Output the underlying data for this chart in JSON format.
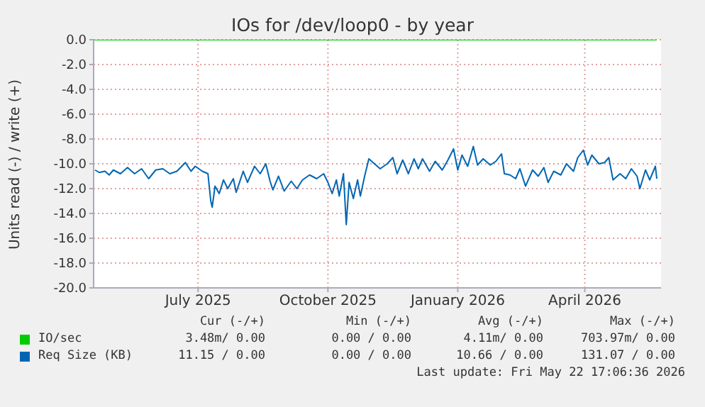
{
  "chart_data": {
    "type": "line",
    "title": "IOs for /dev/loop0 - by year",
    "ylabel": "Units read (-) / write (+)",
    "xlim": [
      "2025-04-18",
      "2026-05-25"
    ],
    "xticks": [
      {
        "value": "2025-07-01",
        "label": "July 2025"
      },
      {
        "value": "2025-10-01",
        "label": "October 2025"
      },
      {
        "value": "2026-01-01",
        "label": "January 2026"
      },
      {
        "value": "2026-04-01",
        "label": "April 2026"
      }
    ],
    "ylim": [
      -20,
      0
    ],
    "yticks": [
      {
        "value": -20,
        "label": "-20.0"
      },
      {
        "value": -18,
        "label": "-18.0"
      },
      {
        "value": -16,
        "label": "-16.0"
      },
      {
        "value": -14,
        "label": "-14.0"
      },
      {
        "value": -12,
        "label": "-12.0"
      },
      {
        "value": -10,
        "label": "-10.0"
      },
      {
        "value": -8,
        "label": "-8.0"
      },
      {
        "value": -6,
        "label": "-6.0"
      },
      {
        "value": -4,
        "label": "-4.0"
      },
      {
        "value": -2,
        "label": "-2.0"
      },
      {
        "value": 0,
        "label": "0.0"
      }
    ],
    "grid": true,
    "legend": "bottom",
    "marker": "none",
    "line_style": "solid",
    "series": [
      {
        "name": "IO/sec",
        "color": "#00cc00",
        "x": [
          "2025-04-18",
          "2026-05-22"
        ],
        "values": [
          0,
          0
        ]
      },
      {
        "name": "Req Size (KB)",
        "color": "#0066b3",
        "x": [
          "2025-04-19",
          "2025-04-22",
          "2025-04-26",
          "2025-04-29",
          "2025-05-02",
          "2025-05-07",
          "2025-05-12",
          "2025-05-17",
          "2025-05-22",
          "2025-05-27",
          "2025-06-01",
          "2025-06-06",
          "2025-06-11",
          "2025-06-16",
          "2025-06-22",
          "2025-06-26",
          "2025-06-29",
          "2025-07-04",
          "2025-07-08",
          "2025-07-10",
          "2025-07-11",
          "2025-07-13",
          "2025-07-16",
          "2025-07-19",
          "2025-07-22",
          "2025-07-26",
          "2025-07-28",
          "2025-08-02",
          "2025-08-05",
          "2025-08-10",
          "2025-08-14",
          "2025-08-18",
          "2025-08-21",
          "2025-08-23",
          "2025-08-27",
          "2025-08-31",
          "2025-09-05",
          "2025-09-09",
          "2025-09-13",
          "2025-09-18",
          "2025-09-23",
          "2025-09-28",
          "2025-10-01",
          "2025-10-04",
          "2025-10-07",
          "2025-10-09",
          "2025-10-12",
          "2025-10-14",
          "2025-10-16",
          "2025-10-19",
          "2025-10-22",
          "2025-10-24",
          "2025-10-27",
          "2025-10-30",
          "2025-11-03",
          "2025-11-07",
          "2025-11-12",
          "2025-11-16",
          "2025-11-19",
          "2025-11-23",
          "2025-11-27",
          "2025-12-01",
          "2025-12-04",
          "2025-12-07",
          "2025-12-12",
          "2025-12-16",
          "2025-12-21",
          "2025-12-25",
          "2025-12-29",
          "2026-01-01",
          "2026-01-04",
          "2026-01-08",
          "2026-01-12",
          "2026-01-15",
          "2026-01-19",
          "2026-01-24",
          "2026-01-28",
          "2026-02-01",
          "2026-02-03",
          "2026-02-07",
          "2026-02-11",
          "2026-02-14",
          "2026-02-18",
          "2026-02-23",
          "2026-02-27",
          "2026-03-03",
          "2026-03-06",
          "2026-03-10",
          "2026-03-15",
          "2026-03-19",
          "2026-03-24",
          "2026-03-27",
          "2026-03-31",
          "2026-04-03",
          "2026-04-06",
          "2026-04-11",
          "2026-04-15",
          "2026-04-18",
          "2026-04-21",
          "2026-04-26",
          "2026-04-30",
          "2026-05-04",
          "2026-05-08",
          "2026-05-10",
          "2026-05-14",
          "2026-05-17",
          "2026-05-21",
          "2026-05-22"
        ],
        "values": [
          -10.5,
          -10.7,
          -10.6,
          -10.9,
          -10.5,
          -10.8,
          -10.3,
          -10.8,
          -10.4,
          -11.2,
          -10.5,
          -10.4,
          -10.8,
          -10.6,
          -9.9,
          -10.6,
          -10.2,
          -10.6,
          -10.8,
          -13.0,
          -13.5,
          -11.8,
          -12.4,
          -11.3,
          -12.0,
          -11.2,
          -12.3,
          -10.6,
          -11.5,
          -10.2,
          -10.8,
          -10.0,
          -11.4,
          -12.1,
          -11.0,
          -12.2,
          -11.4,
          -12.0,
          -11.3,
          -10.9,
          -11.2,
          -10.8,
          -11.5,
          -12.4,
          -11.3,
          -12.6,
          -10.8,
          -14.9,
          -11.5,
          -12.8,
          -11.3,
          -12.6,
          -11.0,
          -9.6,
          -10.0,
          -10.4,
          -10.0,
          -9.5,
          -10.8,
          -9.7,
          -10.8,
          -9.6,
          -10.4,
          -9.6,
          -10.6,
          -9.8,
          -10.5,
          -9.7,
          -8.8,
          -10.5,
          -9.3,
          -10.2,
          -8.6,
          -10.1,
          -9.6,
          -10.1,
          -9.8,
          -9.2,
          -10.8,
          -10.9,
          -11.2,
          -10.4,
          -11.8,
          -10.5,
          -11.0,
          -10.3,
          -11.5,
          -10.6,
          -10.9,
          -10.0,
          -10.6,
          -9.5,
          -8.9,
          -10.1,
          -9.3,
          -10.0,
          -9.9,
          -9.5,
          -11.3,
          -10.8,
          -11.2,
          -10.4,
          -11.0,
          -12.0,
          -10.5,
          -11.3,
          -10.2,
          -11.2
        ]
      }
    ],
    "annotations": [
      "Cur (-/+)",
      "Min (-/+)",
      "Avg (-/+)",
      "Max (-/+)",
      "3.48m/ 0.00",
      "0.00 / 0.00",
      "4.11m/ 0.00",
      "703.97m/ 0.00",
      "11.15 / 0.00",
      "0.00 / 0.00",
      "10.66 / 0.00",
      "131.07 / 0.00",
      "Last update: Fri May 22 17:06:36 2026"
    ]
  }
}
